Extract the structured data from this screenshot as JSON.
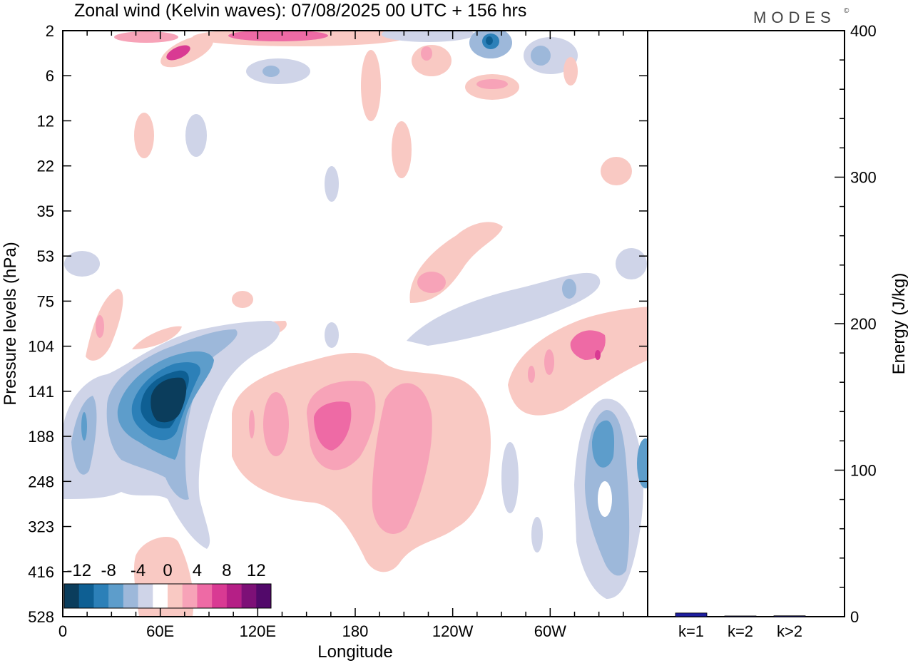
{
  "header": {
    "title": "Zonal wind (Kelvin waves):  07/08/2025  00 UTC  + 156 hrs",
    "brand": "MODES",
    "brand_mark": "©"
  },
  "chart_data": [
    {
      "type": "heatmap",
      "title": "Zonal wind (Kelvin waves):  07/08/2025  00 UTC  + 156 hrs",
      "xlabel": "Longitude",
      "ylabel": "Pressure levels (hPa)",
      "x_ticks": [
        "0",
        "60E",
        "120E",
        "180",
        "120W",
        "60W"
      ],
      "x_tick_values_deg": [
        0,
        60,
        120,
        180,
        240,
        300
      ],
      "xlim": [
        0,
        360
      ],
      "y_ticks": [
        "2",
        "6",
        "12",
        "22",
        "35",
        "53",
        "75",
        "104",
        "141",
        "188",
        "248",
        "323",
        "416",
        "528"
      ],
      "colorbar": {
        "labels": [
          "-12",
          "-8",
          "-4",
          "0",
          "4",
          "8",
          "12"
        ],
        "label_values": [
          -12,
          -8,
          -4,
          0,
          4,
          8,
          12
        ],
        "levels": [
          -14,
          -12,
          -10,
          -8,
          -6,
          -4,
          -2,
          2,
          4,
          6,
          8,
          10,
          12,
          14
        ],
        "colors": [
          "#0b3d5c",
          "#0e5f93",
          "#2c80b8",
          "#5d9dcb",
          "#9db8da",
          "#cfd4e8",
          "#ffffff",
          "#f9c9c3",
          "#f7a3b8",
          "#ee6aa5",
          "#d93a93",
          "#b51f86",
          "#7d1077",
          "#52096a"
        ]
      },
      "features": [
        {
          "label": "strong easterly core",
          "lon": 67,
          "level": 141,
          "value": -14
        },
        {
          "label": "easterly tongue",
          "lon": 75,
          "level": 180,
          "value": -8
        },
        {
          "label": "westerly region",
          "lon": 160,
          "level": 165,
          "value": 7
        },
        {
          "label": "westerly region",
          "lon": 195,
          "level": 220,
          "value": 5
        },
        {
          "label": "easterly column",
          "lon": 334,
          "level": 190,
          "value": -8
        },
        {
          "label": "westerly band",
          "lon": 320,
          "level": 118,
          "value": 7
        },
        {
          "label": "upper westerly streak",
          "lon": 125,
          "level": 2,
          "value": 9
        },
        {
          "label": "upper easterly streak",
          "lon": 262,
          "level": 2,
          "value": -10
        }
      ]
    },
    {
      "type": "bar",
      "categories": [
        "k=1",
        "k=2",
        "k>2"
      ],
      "values": [
        2.5,
        0.4,
        0.6
      ],
      "ylabel": "Energy (J/kg)",
      "ylim": [
        0,
        400
      ],
      "y_ticks": [
        0,
        100,
        200,
        300,
        400
      ],
      "bar_color": "#1f1fa0"
    }
  ]
}
